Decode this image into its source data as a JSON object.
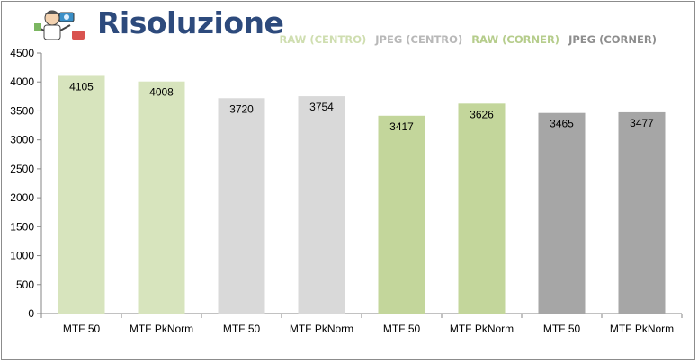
{
  "title": "Risoluzione",
  "legend": [
    {
      "label": "RAW (CENTRO)",
      "color": "#cfdeb0"
    },
    {
      "label": "JPEG (CENTRO)",
      "color": "#b8b8b8"
    },
    {
      "label": "RAW (CORNER)",
      "color": "#b6cd8c"
    },
    {
      "label": "JPEG (CORNER)",
      "color": "#8e8e8e"
    }
  ],
  "chart_data": {
    "type": "bar",
    "title": "Risoluzione",
    "categories": [
      "MTF 50",
      "MTF PkNorm",
      "MTF 50",
      "MTF PkNorm",
      "MTF 50",
      "MTF PkNorm",
      "MTF 50",
      "MTF PkNorm"
    ],
    "values": [
      4105,
      4008,
      3720,
      3754,
      3417,
      3626,
      3465,
      3477
    ],
    "bar_colors": [
      "#d7e4bd",
      "#d7e4bd",
      "#d9d9d9",
      "#d9d9d9",
      "#c3d69b",
      "#c3d69b",
      "#a6a6a6",
      "#a6a6a6"
    ],
    "yticks": [
      0,
      500,
      1000,
      1500,
      2000,
      2500,
      3000,
      3500,
      4000,
      4500
    ],
    "ylim": [
      0,
      4500
    ],
    "grid": false,
    "legend_position": "top-right"
  }
}
